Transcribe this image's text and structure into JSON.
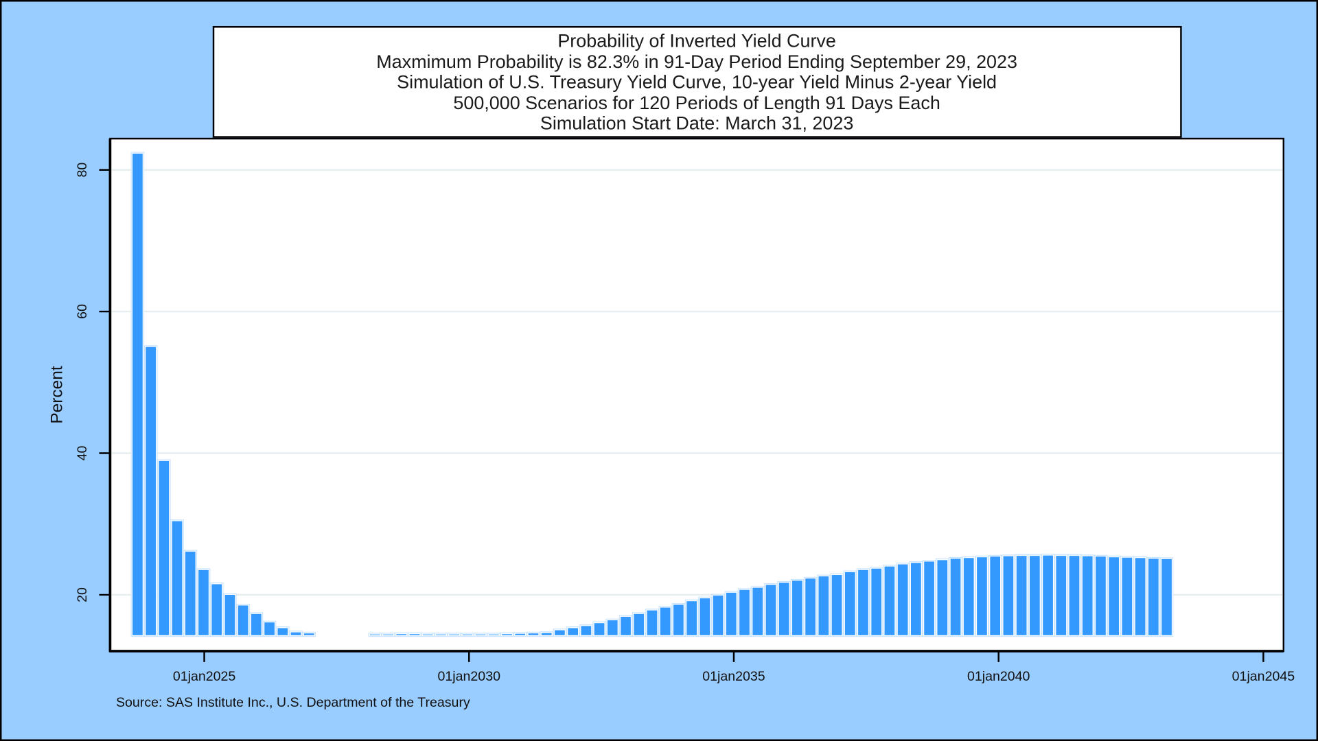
{
  "chart_data": {
    "type": "bar",
    "title_lines": [
      "Probability of Inverted Yield Curve",
      "Maxmimum Probability is 82.3% in 91-Day Period Ending September 29, 2023",
      "Simulation of U.S. Treasury Yield Curve, 10-year Yield Minus 2-year Yield",
      "500,000 Scenarios for 120 Periods of Length 91 Days Each",
      "Simulation Start Date: March 31, 2023"
    ],
    "ylabel": "Percent",
    "xlabel": "",
    "ylim": [
      12.0,
      84.5
    ],
    "y_ticks": [
      "20",
      "40",
      "60",
      "80"
    ],
    "x_ticks": [
      "01jan2025",
      "01jan2030",
      "01jan2035",
      "01jan2040",
      "01jan2045"
    ],
    "grid": "horizontal",
    "footnote": "Source: SAS Institute Inc., U.S. Department of the Treasury",
    "bar_color": "#3399FF",
    "bar_outline_color": "#CCE5FF",
    "background_color": "#99CCFF",
    "x": [
      "2023-09-29",
      "2023-12-29",
      "2024-03-29",
      "2024-06-28",
      "2024-09-27",
      "2024-12-27",
      "2025-03-28",
      "2025-06-27",
      "2025-09-26",
      "2025-12-26",
      "2026-03-27",
      "2026-06-26",
      "2026-09-25",
      "2026-12-25",
      "2027-03-26",
      "2027-06-25",
      "2027-09-24",
      "2027-12-24",
      "2028-03-24",
      "2028-06-23",
      "2028-09-22",
      "2028-12-22",
      "2029-03-23",
      "2029-06-22",
      "2029-09-21",
      "2029-12-21",
      "2030-03-22",
      "2030-06-21",
      "2030-09-20",
      "2030-12-20",
      "2031-03-21",
      "2031-06-20",
      "2031-09-19",
      "2031-12-19",
      "2032-03-19",
      "2032-06-18",
      "2032-09-17",
      "2032-12-17",
      "2033-03-18",
      "2033-06-17",
      "2033-09-16",
      "2033-12-16",
      "2034-03-17",
      "2034-06-16",
      "2034-09-15",
      "2034-12-15",
      "2035-03-16",
      "2035-06-15",
      "2035-09-14",
      "2035-12-14",
      "2036-03-14",
      "2036-06-13",
      "2036-09-12",
      "2036-12-12",
      "2037-03-13",
      "2037-06-12",
      "2037-09-11",
      "2037-12-11",
      "2038-03-12",
      "2038-06-11",
      "2038-09-10",
      "2038-12-10",
      "2039-03-11",
      "2039-06-10",
      "2039-09-09",
      "2039-12-09",
      "2040-03-09",
      "2040-06-08",
      "2040-09-07",
      "2040-12-07",
      "2041-03-08",
      "2041-06-07",
      "2041-09-06",
      "2041-12-06",
      "2042-03-07",
      "2042-06-06",
      "2042-09-05",
      "2042-12-05",
      "2043-03-06"
    ],
    "values": [
      82.3,
      55.0,
      38.9,
      30.4,
      26.1,
      23.5,
      21.5,
      20.0,
      18.5,
      17.3,
      16.1,
      15.3,
      14.7,
      14.55,
      null,
      null,
      null,
      null,
      14.4,
      14.4,
      14.45,
      14.45,
      14.4,
      14.4,
      14.4,
      14.4,
      14.4,
      14.4,
      14.45,
      14.5,
      14.55,
      14.6,
      15.0,
      15.3,
      15.6,
      16.0,
      16.4,
      16.9,
      17.3,
      17.8,
      18.2,
      18.6,
      19.1,
      19.5,
      19.9,
      20.3,
      20.7,
      21.0,
      21.4,
      21.7,
      22.0,
      22.3,
      22.6,
      22.8,
      23.2,
      23.5,
      23.7,
      24.0,
      24.3,
      24.5,
      24.7,
      24.9,
      25.1,
      25.2,
      25.3,
      25.4,
      25.45,
      25.5,
      25.5,
      25.55,
      25.5,
      25.5,
      25.45,
      25.4,
      25.3,
      25.25,
      25.2,
      25.1,
      25.05
    ]
  }
}
